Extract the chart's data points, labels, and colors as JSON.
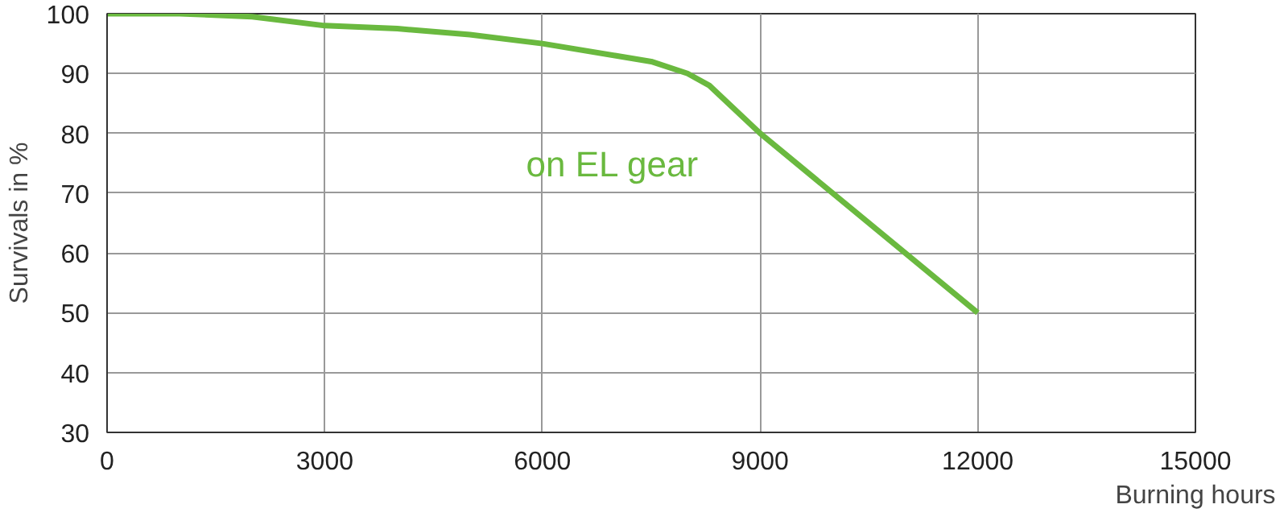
{
  "chart_data": {
    "type": "line",
    "xlabel": "Burning hours",
    "ylabel": "Survivals in %",
    "xlim": [
      0,
      15000
    ],
    "ylim": [
      30,
      100
    ],
    "xticks": [
      0,
      3000,
      6000,
      9000,
      12000,
      15000
    ],
    "yticks": [
      30,
      40,
      50,
      60,
      70,
      80,
      90,
      100
    ],
    "grid": true,
    "marker": "none",
    "line_style": "solid",
    "series": [
      {
        "name": "on EL gear",
        "color": "#6ab93f",
        "x": [
          0,
          1000,
          2000,
          3000,
          4000,
          5000,
          6000,
          7000,
          7500,
          8000,
          8300,
          9000,
          12000
        ],
        "values": [
          100,
          100,
          99.5,
          98,
          97.5,
          96.5,
          95,
          93,
          92,
          90,
          88,
          80,
          50
        ]
      }
    ]
  }
}
